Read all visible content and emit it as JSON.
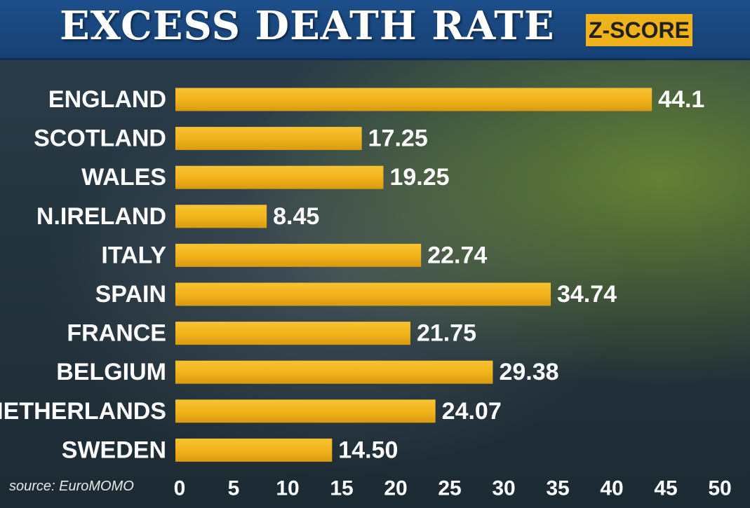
{
  "header": {
    "title": "EXCESS DEATH RATE",
    "badge": "Z-SCORE"
  },
  "source": "source: EuroMOMO",
  "colors": {
    "bar": "#f0b21a",
    "header_bg": "#1d4f8a",
    "text": "#ffffff"
  },
  "chart_data": {
    "type": "bar",
    "orientation": "horizontal",
    "categories": [
      "ENGLAND",
      "SCOTLAND",
      "WALES",
      "N.IRELAND",
      "ITALY",
      "SPAIN",
      "FRANCE",
      "BELGIUM",
      "NETHERLANDS",
      "SWEDEN"
    ],
    "values": [
      44.1,
      17.25,
      19.25,
      8.45,
      22.74,
      34.74,
      21.75,
      29.38,
      24.07,
      14.5
    ],
    "value_labels": [
      "44.1",
      "17.25",
      "19.25",
      "8.45",
      "22.74",
      "34.74",
      "21.75",
      "29.38",
      "24.07",
      "14.50"
    ],
    "xlim": [
      0,
      50
    ],
    "xticks": [
      "0",
      "5",
      "10",
      "15",
      "20",
      "25",
      "30",
      "35",
      "40",
      "45",
      "50"
    ],
    "grid": false,
    "title": "EXCESS DEATH RATE",
    "xlabel": "",
    "ylabel": ""
  }
}
